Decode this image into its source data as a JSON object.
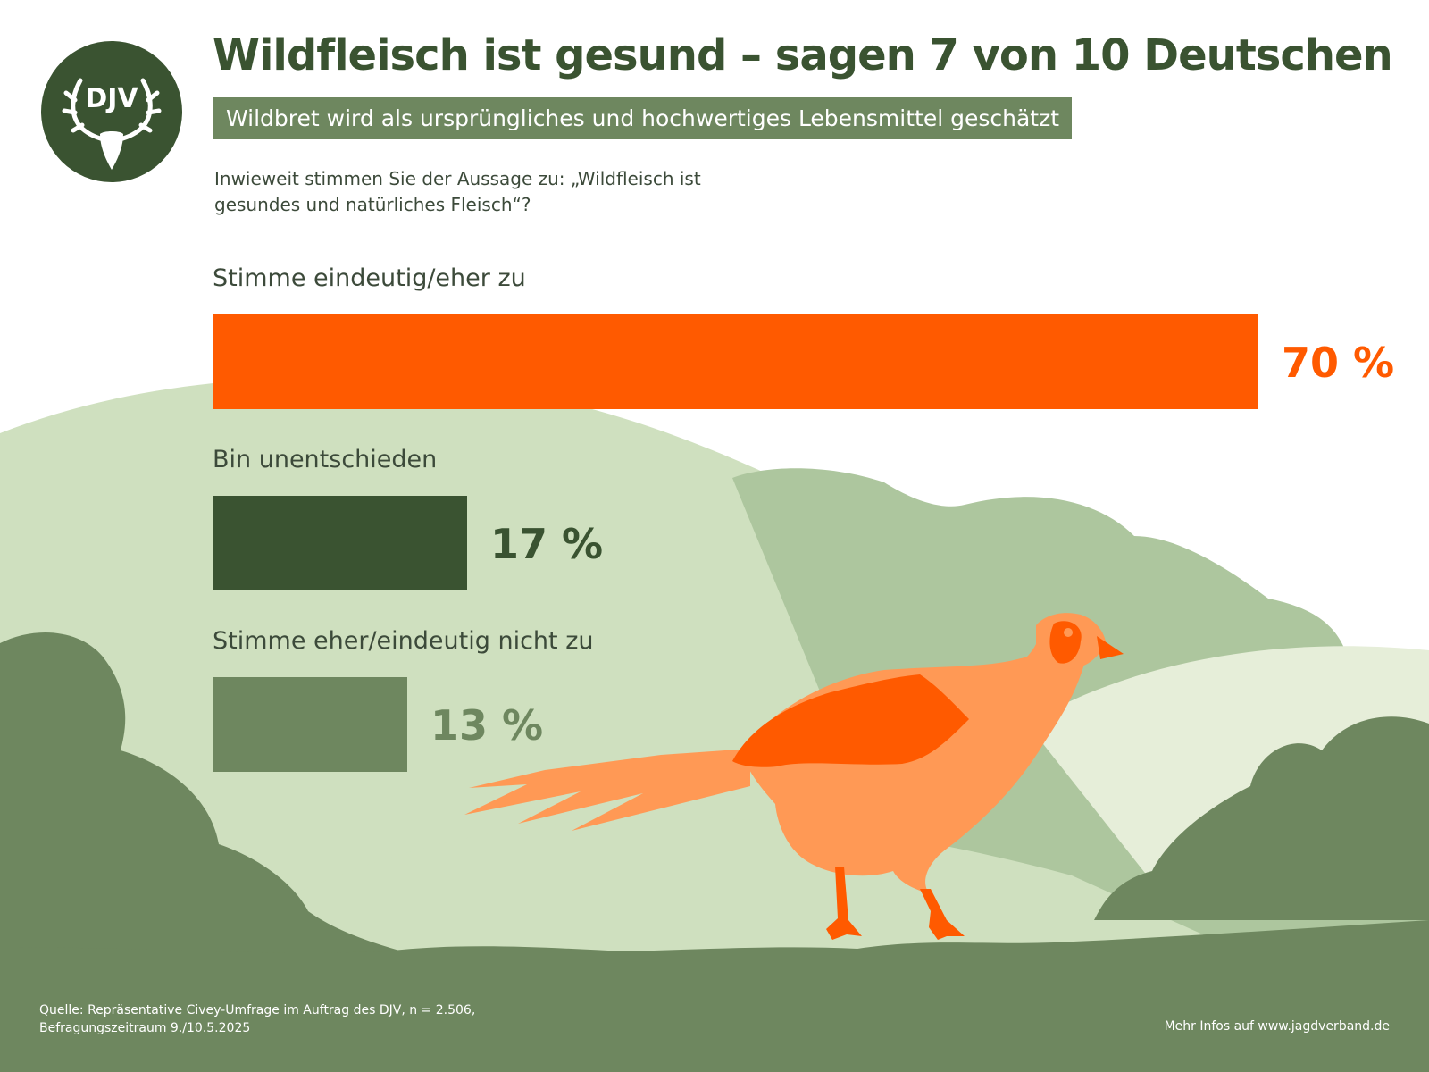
{
  "header": {
    "title": "Wildfleisch ist gesund – sagen 7 von 10 Deutschen",
    "subtitle": "Wildbret wird als ursprüngliches und hochwertiges Lebensmittel geschätzt",
    "question": "Inwieweit stimmen Sie der Aussage zu: „Wildfleisch ist gesundes und natürliches Fleisch“?"
  },
  "logo": {
    "text": "DJV",
    "icon": "deer-antler-icon",
    "color": "#3a5331"
  },
  "chart_data": {
    "type": "bar",
    "orientation": "horizontal",
    "unit": "%",
    "categories": [
      "Stimme eindeutig/eher zu",
      "Bin unentschieden",
      "Stimme eher/eindeutig nicht zu"
    ],
    "values": [
      70,
      17,
      13
    ],
    "value_labels": [
      "70 %",
      "17 %",
      "13 %"
    ],
    "colors": [
      "#ff5a00",
      "#3a5331",
      "#6e875f"
    ],
    "xlim": [
      0,
      70
    ],
    "grid": false,
    "legend": "none"
  },
  "footer": {
    "source_line1": "Quelle: Repräsentative Civey-Umfrage im Auftrag des DJV, n = 2.506,",
    "source_line2": "Befragungszeitraum 9./10.5.2025",
    "more_info": "Mehr Infos auf www.jagdverband.de"
  },
  "illustration": {
    "subject": "pheasant-illustration",
    "colors": {
      "bird": "#ff9955",
      "wing": "#ff5a00",
      "hills_light": "#cfe0bf",
      "hills_mid": "#adc69e",
      "bushes": "#6e875f"
    }
  }
}
